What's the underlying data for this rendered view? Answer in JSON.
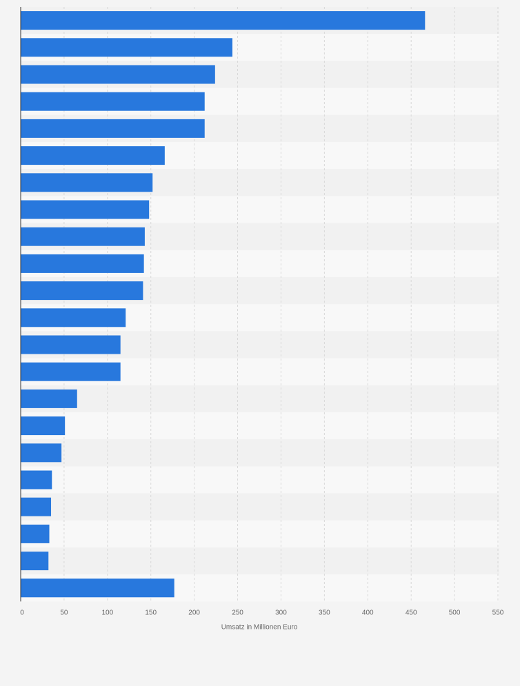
{
  "chart_data": {
    "type": "bar",
    "orientation": "horizontal",
    "title": "",
    "xlabel": "Umsatz in Millionen Euro",
    "ylabel": "",
    "xlim": [
      0,
      550
    ],
    "xticks": [
      0,
      50,
      100,
      150,
      200,
      250,
      300,
      350,
      400,
      450,
      500,
      550
    ],
    "grid": true,
    "legend": "none",
    "values": [
      466,
      244,
      224,
      212,
      212,
      166,
      152,
      148,
      143,
      142,
      141,
      121,
      115,
      115,
      65,
      51,
      47,
      36,
      35,
      33,
      32,
      177
    ],
    "colors": {
      "bar": "#2878dd",
      "background": "#f4f4f4",
      "band_light": "#f8f8f8",
      "band_dark": "#f1f1f1",
      "grid": "#d8d8d8",
      "axis": "#333333",
      "text": "#666666"
    }
  }
}
